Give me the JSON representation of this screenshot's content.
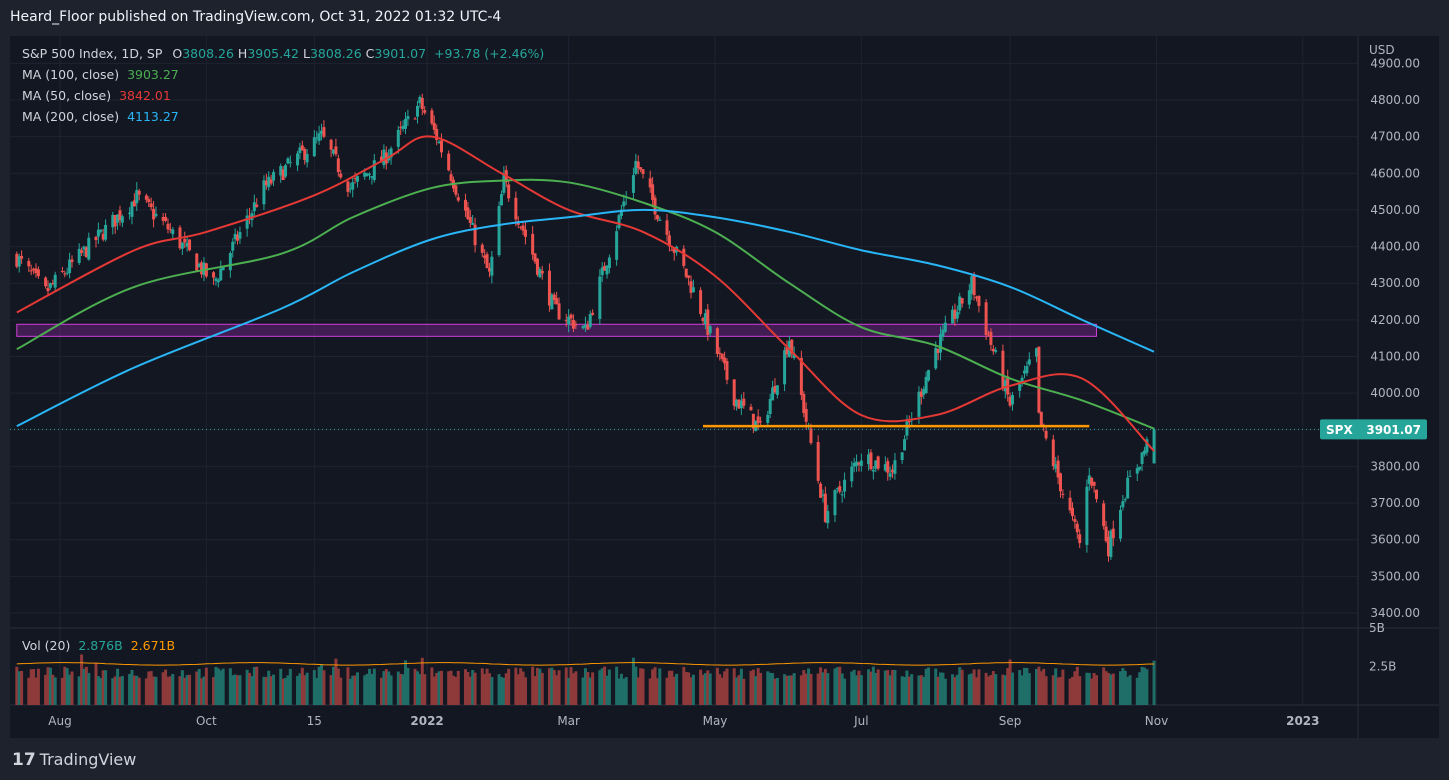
{
  "header": {
    "title": "Heard_Floor published on TradingView.com, Oct 31, 2022 01:32 UTC-4"
  },
  "legend": {
    "symbol": "S&P 500 Index, 1D, SP",
    "o_label": "O",
    "o": "3808.26",
    "h_label": "H",
    "h": "3905.42",
    "l_label": "L",
    "l": "3808.26",
    "c_label": "C",
    "c": "3901.07",
    "change": "+93.78 (+2.46%)",
    "ma100": {
      "label": "MA (100, close)",
      "value": "3903.27"
    },
    "ma50": {
      "label": "MA (50, close)",
      "value": "3842.01"
    },
    "ma200": {
      "label": "MA (200, close)",
      "value": "4113.27"
    }
  },
  "volume": {
    "label": "Vol (20)",
    "value": "2.876B",
    "ma_value": "2.671B"
  },
  "price_tag": {
    "symbol": "SPX",
    "value": "3901.07"
  },
  "axis": {
    "currency": "USD",
    "vol_ticks": [
      "5B",
      "2.5B"
    ]
  },
  "footer": {
    "brand": "TradingView"
  },
  "colors": {
    "bg": "#131722",
    "up": "#26a69a",
    "down": "#ef5350",
    "ma100": "#4caf50",
    "ma50": "#e53935",
    "ma200": "#29b6f6",
    "support": "#ff9800",
    "zone": "#9c27b0"
  },
  "chart_data": {
    "type": "candlestick",
    "title": "S&P 500 Index, 1D, SP",
    "ylim": [
      3400,
      4900
    ],
    "y_ticks": [
      4900,
      4800,
      4700,
      4600,
      4500,
      4400,
      4300,
      4200,
      4100,
      4000,
      3900,
      3800,
      3700,
      3600,
      3500,
      3400
    ],
    "x_ticks": [
      "Aug",
      "Oct",
      "15",
      "2022",
      "Mar",
      "May",
      "Jul",
      "Sep",
      "Nov",
      "2023"
    ],
    "x_tick_dates": [
      "2021-08-01",
      "2021-10-01",
      "2021-11-15",
      "2022-01-01",
      "2022-03-01",
      "2022-05-01",
      "2022-07-01",
      "2022-09-01",
      "2022-11-01",
      "2023-01-01"
    ],
    "last_close": 3901.07,
    "support_level": {
      "value": 3910,
      "from": "2022-04-26",
      "to": "2022-10-04"
    },
    "resistance_zone": {
      "low": 4155,
      "high": 4188,
      "from": "2021-07-14",
      "to": "2022-10-07"
    },
    "price_anchors": [
      {
        "date": "2021-07-14",
        "value": 4370
      },
      {
        "date": "2021-07-26",
        "value": 4275
      },
      {
        "date": "2021-08-16",
        "value": 4420
      },
      {
        "date": "2021-09-02",
        "value": 4535
      },
      {
        "date": "2021-09-15",
        "value": 4450
      },
      {
        "date": "2021-10-04",
        "value": 4300
      },
      {
        "date": "2021-10-25",
        "value": 4560
      },
      {
        "date": "2021-11-18",
        "value": 4700
      },
      {
        "date": "2021-11-30",
        "value": 4560
      },
      {
        "date": "2021-12-14",
        "value": 4640
      },
      {
        "date": "2021-12-29",
        "value": 4790
      },
      {
        "date": "2022-01-05",
        "value": 4700
      },
      {
        "date": "2022-01-27",
        "value": 4320
      },
      {
        "date": "2022-02-02",
        "value": 4580
      },
      {
        "date": "2022-02-23",
        "value": 4230
      },
      {
        "date": "2022-03-08",
        "value": 4170
      },
      {
        "date": "2022-03-29",
        "value": 4630
      },
      {
        "date": "2022-04-08",
        "value": 4480
      },
      {
        "date": "2022-04-22",
        "value": 4280
      },
      {
        "date": "2022-05-09",
        "value": 3990
      },
      {
        "date": "2022-05-20",
        "value": 3900
      },
      {
        "date": "2022-06-01",
        "value": 4150
      },
      {
        "date": "2022-06-16",
        "value": 3670
      },
      {
        "date": "2022-07-01",
        "value": 3830
      },
      {
        "date": "2022-07-14",
        "value": 3790
      },
      {
        "date": "2022-08-01",
        "value": 4120
      },
      {
        "date": "2022-08-16",
        "value": 4300
      },
      {
        "date": "2022-09-01",
        "value": 3970
      },
      {
        "date": "2022-09-12",
        "value": 4110
      },
      {
        "date": "2022-09-13",
        "value": 3930
      },
      {
        "date": "2022-09-30",
        "value": 3590
      },
      {
        "date": "2022-10-04",
        "value": 3790
      },
      {
        "date": "2022-10-12",
        "value": 3580
      },
      {
        "date": "2022-10-18",
        "value": 3720
      },
      {
        "date": "2022-10-31",
        "value": 3901
      }
    ],
    "ma_series": [
      {
        "name": "MA (100, close)",
        "color": "#4caf50",
        "points": [
          {
            "date": "2021-07-14",
            "value": 4120
          },
          {
            "date": "2021-09-01",
            "value": 4290
          },
          {
            "date": "2021-11-01",
            "value": 4380
          },
          {
            "date": "2021-12-01",
            "value": 4480
          },
          {
            "date": "2022-01-03",
            "value": 4560
          },
          {
            "date": "2022-02-01",
            "value": 4580
          },
          {
            "date": "2022-03-01",
            "value": 4575
          },
          {
            "date": "2022-04-01",
            "value": 4520
          },
          {
            "date": "2022-05-01",
            "value": 4440
          },
          {
            "date": "2022-06-01",
            "value": 4300
          },
          {
            "date": "2022-07-01",
            "value": 4180
          },
          {
            "date": "2022-08-01",
            "value": 4130
          },
          {
            "date": "2022-09-01",
            "value": 4040
          },
          {
            "date": "2022-10-01",
            "value": 3980
          },
          {
            "date": "2022-10-31",
            "value": 3903
          }
        ]
      },
      {
        "name": "MA (50, close)",
        "color": "#e53935",
        "points": [
          {
            "date": "2021-07-14",
            "value": 4220
          },
          {
            "date": "2021-09-01",
            "value": 4390
          },
          {
            "date": "2021-10-01",
            "value": 4440
          },
          {
            "date": "2021-11-15",
            "value": 4540
          },
          {
            "date": "2021-12-15",
            "value": 4640
          },
          {
            "date": "2022-01-03",
            "value": 4700
          },
          {
            "date": "2022-02-01",
            "value": 4600
          },
          {
            "date": "2022-03-01",
            "value": 4500
          },
          {
            "date": "2022-04-01",
            "value": 4440
          },
          {
            "date": "2022-05-01",
            "value": 4320
          },
          {
            "date": "2022-06-01",
            "value": 4120
          },
          {
            "date": "2022-07-01",
            "value": 3940
          },
          {
            "date": "2022-08-01",
            "value": 3940
          },
          {
            "date": "2022-09-01",
            "value": 4020
          },
          {
            "date": "2022-10-01",
            "value": 4040
          },
          {
            "date": "2022-10-31",
            "value": 3842
          }
        ]
      },
      {
        "name": "MA (200, close)",
        "color": "#29b6f6",
        "points": [
          {
            "date": "2021-07-14",
            "value": 3910
          },
          {
            "date": "2021-09-01",
            "value": 4070
          },
          {
            "date": "2021-11-01",
            "value": 4230
          },
          {
            "date": "2021-12-01",
            "value": 4330
          },
          {
            "date": "2022-01-03",
            "value": 4420
          },
          {
            "date": "2022-02-01",
            "value": 4460
          },
          {
            "date": "2022-03-01",
            "value": 4480
          },
          {
            "date": "2022-04-01",
            "value": 4500
          },
          {
            "date": "2022-05-01",
            "value": 4480
          },
          {
            "date": "2022-06-01",
            "value": 4440
          },
          {
            "date": "2022-07-01",
            "value": 4390
          },
          {
            "date": "2022-08-01",
            "value": 4350
          },
          {
            "date": "2022-09-01",
            "value": 4290
          },
          {
            "date": "2022-10-01",
            "value": 4200
          },
          {
            "date": "2022-10-31",
            "value": 4113
          }
        ]
      }
    ],
    "volume_ylim": [
      0,
      5
    ],
    "volume_level": 2.671,
    "volume_last": 2.876
  }
}
